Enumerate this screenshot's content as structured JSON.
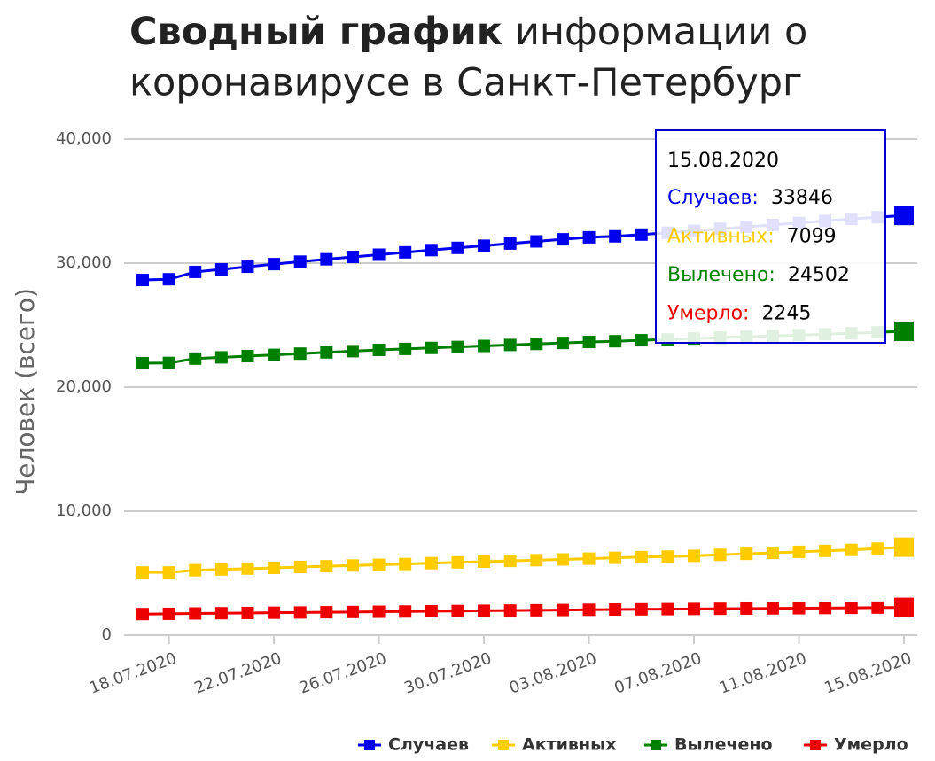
{
  "chart_data": {
    "type": "line",
    "title": {
      "bold": "Сводный график",
      "line1": "информации о",
      "line2": "коронавирусе в Санкт-Петербург"
    },
    "y_label": "Человек (всего)",
    "categories": [
      null,
      "18.07.2020",
      null,
      null,
      null,
      "22.07.2020",
      null,
      null,
      null,
      "26.07.2020",
      null,
      null,
      null,
      "30.07.2020",
      null,
      null,
      null,
      "03.08.2020",
      null,
      null,
      null,
      "07.08.2020",
      null,
      null,
      null,
      "11.08.2020",
      null,
      null,
      null,
      "15.08.2020"
    ],
    "series": [
      {
        "name": "Случаев",
        "color": "#0000ee",
        "values": [
          28640,
          28700,
          29290,
          29500,
          29710,
          29920,
          30120,
          30310,
          30500,
          30680,
          30870,
          31050,
          31230,
          31400,
          31580,
          31750,
          31920,
          32080,
          32160,
          32300,
          32450,
          32600,
          32760,
          32920,
          33080,
          33240,
          33400,
          33560,
          33700,
          33846
        ]
      },
      {
        "name": "Активных",
        "color": "#ffcc00",
        "values": [
          5060,
          5060,
          5240,
          5300,
          5370,
          5430,
          5500,
          5560,
          5620,
          5680,
          5740,
          5810,
          5870,
          5930,
          5990,
          6050,
          6110,
          6170,
          6240,
          6300,
          6340,
          6400,
          6480,
          6560,
          6640,
          6720,
          6800,
          6880,
          6980,
          7099
        ]
      },
      {
        "name": "Вылечено",
        "color": "#008000",
        "values": [
          21930,
          21950,
          22300,
          22400,
          22500,
          22600,
          22700,
          22800,
          22900,
          23000,
          23080,
          23160,
          23240,
          23320,
          23400,
          23480,
          23560,
          23640,
          23700,
          23780,
          23850,
          23920,
          23990,
          24060,
          24130,
          24200,
          24270,
          24340,
          24420,
          24502
        ]
      },
      {
        "name": "Умерло",
        "color": "#ee0000",
        "values": [
          1700,
          1720,
          1750,
          1770,
          1790,
          1810,
          1830,
          1850,
          1870,
          1890,
          1910,
          1930,
          1950,
          1970,
          1990,
          2010,
          2030,
          2050,
          2070,
          2085,
          2100,
          2115,
          2130,
          2145,
          2160,
          2175,
          2190,
          2205,
          2225,
          2245
        ]
      }
    ],
    "ylim": [
      0,
      40000
    ],
    "yticks": [
      0,
      {
        "value": 10000,
        "label": "10,000"
      },
      {
        "value": 20000,
        "label": "20,000"
      },
      {
        "value": 30000,
        "label": "30,000"
      },
      {
        "value": 40000,
        "label": "40,000"
      }
    ],
    "grid": true,
    "legend": "bottom-right",
    "tooltip": {
      "labels": [
        "Случаев:",
        "Активных:",
        "Вылечено:",
        "Умерло:"
      ]
    }
  }
}
